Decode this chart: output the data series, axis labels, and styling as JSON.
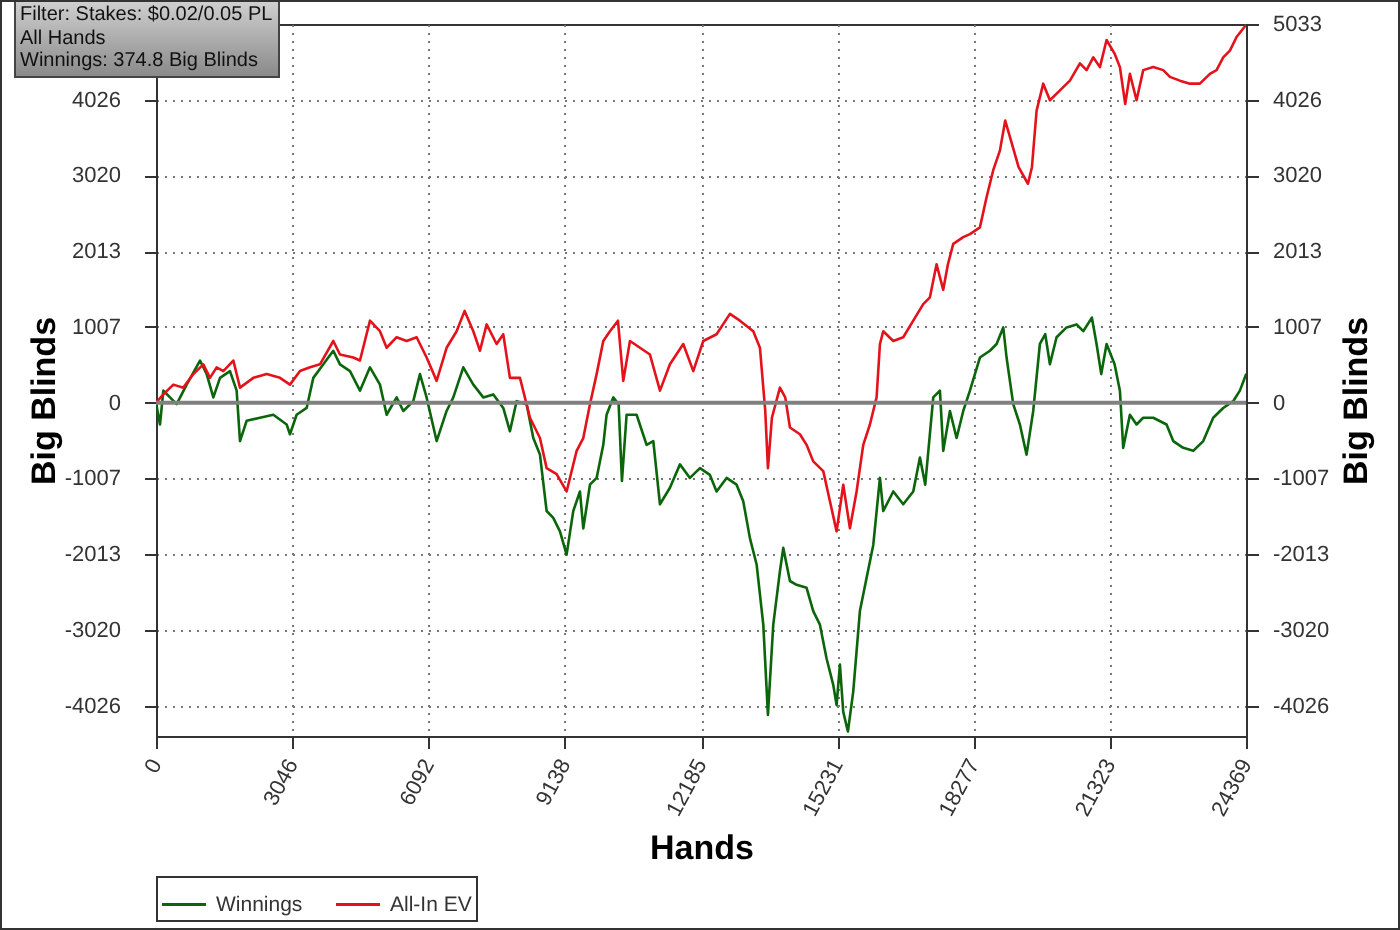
{
  "chart_data": {
    "type": "line",
    "annotations": [
      "Filter: Stakes: $0.02/0.05 PL",
      "All Hands",
      "Winnings: 374.8 Big Blinds"
    ],
    "xlabel": "Hands",
    "ylabel": "Big Blinds",
    "y2label": "Big Blinds",
    "xlim": [
      0,
      24369
    ],
    "xticks": [
      0,
      3046,
      6092,
      9138,
      12185,
      15231,
      18277,
      21323,
      24369
    ],
    "ylim": [
      -4430,
      5033
    ],
    "yticks": [
      -4026,
      -3020,
      -2013,
      -1007,
      0,
      1007,
      2013,
      3020,
      4026
    ],
    "y2lim": [
      -4430,
      5033
    ],
    "y2ticks": [
      -4026,
      -3020,
      -2013,
      -1007,
      0,
      1007,
      2013,
      3020,
      4026,
      5033
    ],
    "grid": true,
    "legend": "bottom left",
    "ref_lines": [
      {
        "axis": "y",
        "value": 0,
        "color": "#808080"
      }
    ],
    "series": [
      {
        "name": "Winnings",
        "color": "#0b650b",
        "x": [
          0,
          89,
          164,
          313,
          462,
          686,
          984,
          1133,
          1282,
          1431,
          1654,
          1803,
          1878,
          2027,
          2325,
          2623,
          2921,
          2995,
          3144,
          3368,
          3517,
          3741,
          3964,
          4113,
          4337,
          4560,
          4784,
          5007,
          5156,
          5380,
          5529,
          5752,
          5901,
          6050,
          6274,
          6497,
          6647,
          6870,
          7094,
          7317,
          7541,
          7764,
          7913,
          8062,
          8286,
          8435,
          8584,
          8733,
          8882,
          9031,
          9180,
          9329,
          9478,
          9553,
          9702,
          9851,
          10000,
          10074,
          10223,
          10343,
          10417,
          10521,
          10745,
          10968,
          11118,
          11267,
          11490,
          11714,
          11937,
          12161,
          12384,
          12533,
          12757,
          12980,
          13129,
          13278,
          13428,
          13577,
          13681,
          13800,
          13949,
          14024,
          14173,
          14322,
          14545,
          14694,
          14843,
          14992,
          15141,
          15216,
          15290,
          15365,
          15469,
          15588,
          15737,
          15886,
          16036,
          16185,
          16259,
          16483,
          16706,
          16930,
          17079,
          17198,
          17377,
          17526,
          17601,
          17750,
          17899,
          18048,
          18197,
          18420,
          18644,
          18793,
          18942,
          19016,
          19165,
          19314,
          19463,
          19612,
          19761,
          19881,
          19985,
          20134,
          20358,
          20581,
          20730,
          20924,
          21028,
          21133,
          21252,
          21431,
          21550,
          21624,
          21773,
          21922,
          22071,
          22295,
          22593,
          22742,
          22966,
          23189,
          23413,
          23636,
          23860,
          24083,
          24232,
          24369
        ],
        "values": [
          0,
          -290,
          160,
          70,
          -20,
          240,
          560,
          380,
          70,
          330,
          420,
          160,
          -510,
          -240,
          -200,
          -160,
          -290,
          -420,
          -160,
          -70,
          330,
          510,
          690,
          510,
          420,
          160,
          470,
          240,
          -160,
          70,
          -110,
          20,
          380,
          70,
          -510,
          -110,
          70,
          470,
          240,
          70,
          110,
          -70,
          -380,
          20,
          -20,
          -470,
          -690,
          -1440,
          -1530,
          -1710,
          -2020,
          -1440,
          -1180,
          -1670,
          -1090,
          -1000,
          -560,
          -160,
          70,
          -20,
          -1040,
          -160,
          -160,
          -560,
          -510,
          -1350,
          -1130,
          -820,
          -1000,
          -870,
          -960,
          -1180,
          -1000,
          -1090,
          -1310,
          -1800,
          -2150,
          -2950,
          -4150,
          -2950,
          -2240,
          -1930,
          -2370,
          -2420,
          -2460,
          -2770,
          -2950,
          -3400,
          -3750,
          -4020,
          -3480,
          -4110,
          -4370,
          -3840,
          -2770,
          -2330,
          -1890,
          -1000,
          -1440,
          -1180,
          -1350,
          -1180,
          -730,
          -1090,
          70,
          160,
          -640,
          -110,
          -470,
          -110,
          160,
          600,
          690,
          780,
          1000,
          600,
          -20,
          -290,
          -690,
          -110,
          780,
          910,
          510,
          870,
          1000,
          1040,
          950,
          1130,
          780,
          380,
          780,
          510,
          160,
          -600,
          -160,
          -290,
          -200,
          -200,
          -290,
          -510,
          -600,
          -640,
          -510,
          -200,
          -70,
          20,
          160,
          374.8
        ]
      },
      {
        "name": "All-In EV",
        "color": "#e3121b",
        "x": [
          0,
          164,
          387,
          611,
          835,
          1058,
          1207,
          1356,
          1505,
          1729,
          1878,
          2176,
          2474,
          2772,
          2995,
          3219,
          3443,
          3666,
          3964,
          4113,
          4411,
          4560,
          4784,
          5007,
          5156,
          5380,
          5604,
          5827,
          6050,
          6274,
          6497,
          6721,
          6900,
          7094,
          7243,
          7392,
          7615,
          7764,
          7913,
          8137,
          8361,
          8584,
          8733,
          8957,
          9180,
          9404,
          9553,
          9702,
          9851,
          10000,
          10149,
          10328,
          10447,
          10596,
          10820,
          11043,
          11267,
          11490,
          11788,
          12012,
          12235,
          12533,
          12831,
          13055,
          13353,
          13502,
          13621,
          13681,
          13770,
          13949,
          14068,
          14173,
          14396,
          14545,
          14694,
          14918,
          15067,
          15216,
          15365,
          15514,
          15663,
          15812,
          15961,
          16110,
          16185,
          16259,
          16483,
          16706,
          16930,
          17153,
          17302,
          17451,
          17600,
          17705,
          17824,
          18048,
          18197,
          18420,
          18569,
          18718,
          18867,
          18986,
          19136,
          19285,
          19494,
          19583,
          19687,
          19836,
          19985,
          20209,
          20432,
          20656,
          20805,
          20954,
          21103,
          21252,
          21431,
          21550,
          21669,
          21773,
          21922,
          22071,
          22295,
          22519,
          22668,
          22891,
          23115,
          23338,
          23562,
          23711,
          23860,
          24009,
          24158,
          24369
        ],
        "values": [
          0,
          110,
          240,
          200,
          380,
          510,
          330,
          470,
          420,
          560,
          200,
          330,
          380,
          330,
          240,
          420,
          470,
          510,
          820,
          640,
          600,
          560,
          1090,
          950,
          730,
          870,
          820,
          870,
          600,
          290,
          730,
          950,
          1220,
          950,
          690,
          1040,
          780,
          910,
          330,
          330,
          -200,
          -470,
          -870,
          -950,
          -1180,
          -640,
          -470,
          -20,
          380,
          820,
          950,
          1090,
          290,
          820,
          730,
          640,
          160,
          510,
          780,
          420,
          820,
          910,
          1180,
          1090,
          950,
          730,
          -110,
          -870,
          -200,
          200,
          70,
          -330,
          -420,
          -560,
          -780,
          -910,
          -1310,
          -1710,
          -1090,
          -1670,
          -1180,
          -560,
          -290,
          70,
          780,
          950,
          820,
          870,
          1090,
          1310,
          1400,
          1840,
          1500,
          1840,
          2110,
          2200,
          2240,
          2330,
          2730,
          3090,
          3350,
          3750,
          3440,
          3130,
          2910,
          3130,
          3880,
          4240,
          4020,
          4150,
          4280,
          4510,
          4420,
          4590,
          4460,
          4820,
          4640,
          4460,
          3970,
          4370,
          4020,
          4420,
          4460,
          4420,
          4330,
          4280,
          4240,
          4240,
          4370,
          4420,
          4590,
          4680,
          4860,
          5020
        ]
      }
    ]
  }
}
